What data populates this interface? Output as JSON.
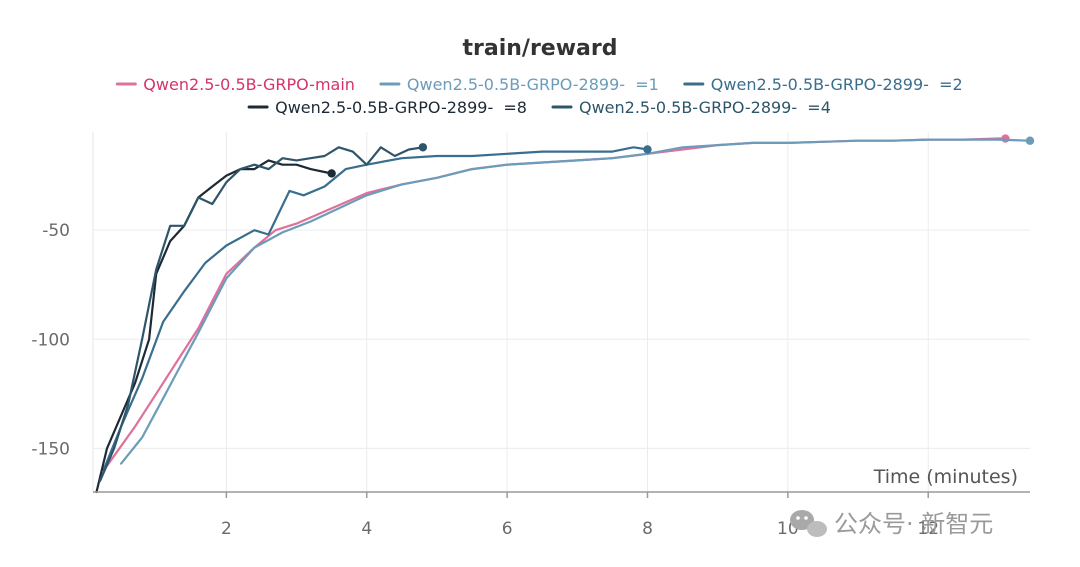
{
  "chart_data": {
    "type": "line",
    "title": "train/reward",
    "xlabel": "Time (minutes)",
    "ylabel": "",
    "xlim": [
      0.1,
      13.45
    ],
    "ylim": [
      -170,
      -5
    ],
    "xticks": [
      2,
      4,
      6,
      8,
      10,
      12
    ],
    "yticks": [
      -50,
      -100,
      -150
    ],
    "grid": true,
    "legend_position": "top",
    "series": [
      {
        "name": "Qwen2.5-0.5B-GRPO-main",
        "color": "#e0709c",
        "label_color": "#d6336c",
        "end_marker": true,
        "x": [
          0.3,
          0.7,
          1.0,
          1.3,
          1.6,
          2.0,
          2.4,
          2.7,
          3.0,
          3.5,
          4.0,
          4.5,
          5.0,
          5.5,
          6.0,
          6.5,
          7.0,
          7.5,
          8.0,
          8.5,
          9.0,
          9.5,
          10.0,
          10.5,
          11.0,
          11.5,
          12.0,
          12.5,
          13.0,
          13.1
        ],
        "y": [
          -158,
          -140,
          -125,
          -110,
          -95,
          -70,
          -58,
          -50,
          -47,
          -40,
          -33,
          -29,
          -26,
          -22,
          -20,
          -19,
          -18,
          -17,
          -15,
          -13,
          -11,
          -10,
          -10,
          -9.5,
          -9,
          -9,
          -8.5,
          -8.5,
          -8,
          -8
        ]
      },
      {
        "name": "Qwen2.5-0.5B-GRPO-2899-  =1",
        "color": "#6b9cb9",
        "label_color": "#6b9cb9",
        "end_marker": true,
        "x": [
          0.5,
          0.8,
          1.0,
          1.3,
          1.6,
          2.0,
          2.4,
          2.8,
          3.2,
          3.6,
          4.0,
          4.5,
          5.0,
          5.5,
          6.0,
          6.5,
          7.0,
          7.5,
          8.0,
          8.5,
          9.0,
          9.5,
          10.0,
          10.5,
          11.0,
          11.5,
          12.0,
          12.5,
          13.0,
          13.45
        ],
        "y": [
          -157,
          -145,
          -133,
          -115,
          -97,
          -72,
          -58,
          -51,
          -46,
          -40,
          -34,
          -29,
          -26,
          -22,
          -20,
          -19,
          -18,
          -17,
          -15,
          -12,
          -11,
          -10,
          -10,
          -9.5,
          -9,
          -9,
          -8.5,
          -8.5,
          -8.5,
          -9
        ]
      },
      {
        "name": "Qwen2.5-0.5B-GRPO-2899-  =2",
        "color": "#3a6e8f",
        "label_color": "#3a6e8f",
        "end_marker": true,
        "x": [
          0.25,
          0.5,
          0.8,
          1.1,
          1.4,
          1.7,
          2.0,
          2.4,
          2.6,
          2.9,
          3.1,
          3.4,
          3.7,
          4.0,
          4.5,
          5.0,
          5.5,
          6.0,
          6.5,
          7.0,
          7.5,
          7.8,
          8.0
        ],
        "y": [
          -160,
          -140,
          -118,
          -92,
          -78,
          -65,
          -57,
          -50,
          -52,
          -32,
          -34,
          -30,
          -22,
          -20,
          -17,
          -16,
          -16,
          -15,
          -14,
          -14,
          -14,
          -12,
          -13
        ]
      },
      {
        "name": "Qwen2.5-0.5B-GRPO-2899-  =8",
        "color": "#1d2a35",
        "label_color": "#1d2a35",
        "end_marker": true,
        "x": [
          0.15,
          0.3,
          0.5,
          0.7,
          0.9,
          1.0,
          1.2,
          1.4,
          1.6,
          1.8,
          2.0,
          2.2,
          2.4,
          2.6,
          2.8,
          3.0,
          3.2,
          3.5
        ],
        "y": [
          -170,
          -150,
          -135,
          -120,
          -100,
          -70,
          -55,
          -48,
          -35,
          -30,
          -25,
          -22,
          -22,
          -18,
          -20,
          -20,
          -22,
          -24
        ]
      },
      {
        "name": "Qwen2.5-0.5B-GRPO-2899-  =4",
        "color": "#2e5569",
        "label_color": "#2e5569",
        "end_marker": true,
        "x": [
          0.2,
          0.4,
          0.6,
          0.8,
          1.0,
          1.2,
          1.4,
          1.6,
          1.8,
          2.0,
          2.2,
          2.4,
          2.6,
          2.8,
          3.0,
          3.2,
          3.4,
          3.6,
          3.8,
          4.0,
          4.2,
          4.4,
          4.6,
          4.8
        ],
        "y": [
          -165,
          -150,
          -130,
          -100,
          -68,
          -48,
          -48,
          -35,
          -38,
          -28,
          -22,
          -20,
          -22,
          -17,
          -18,
          -17,
          -16,
          -12,
          -14,
          -20,
          -12,
          -16,
          -13,
          -12
        ]
      }
    ]
  },
  "watermark": {
    "text": "公众号· 新智元",
    "icon": "wechat-icon"
  }
}
